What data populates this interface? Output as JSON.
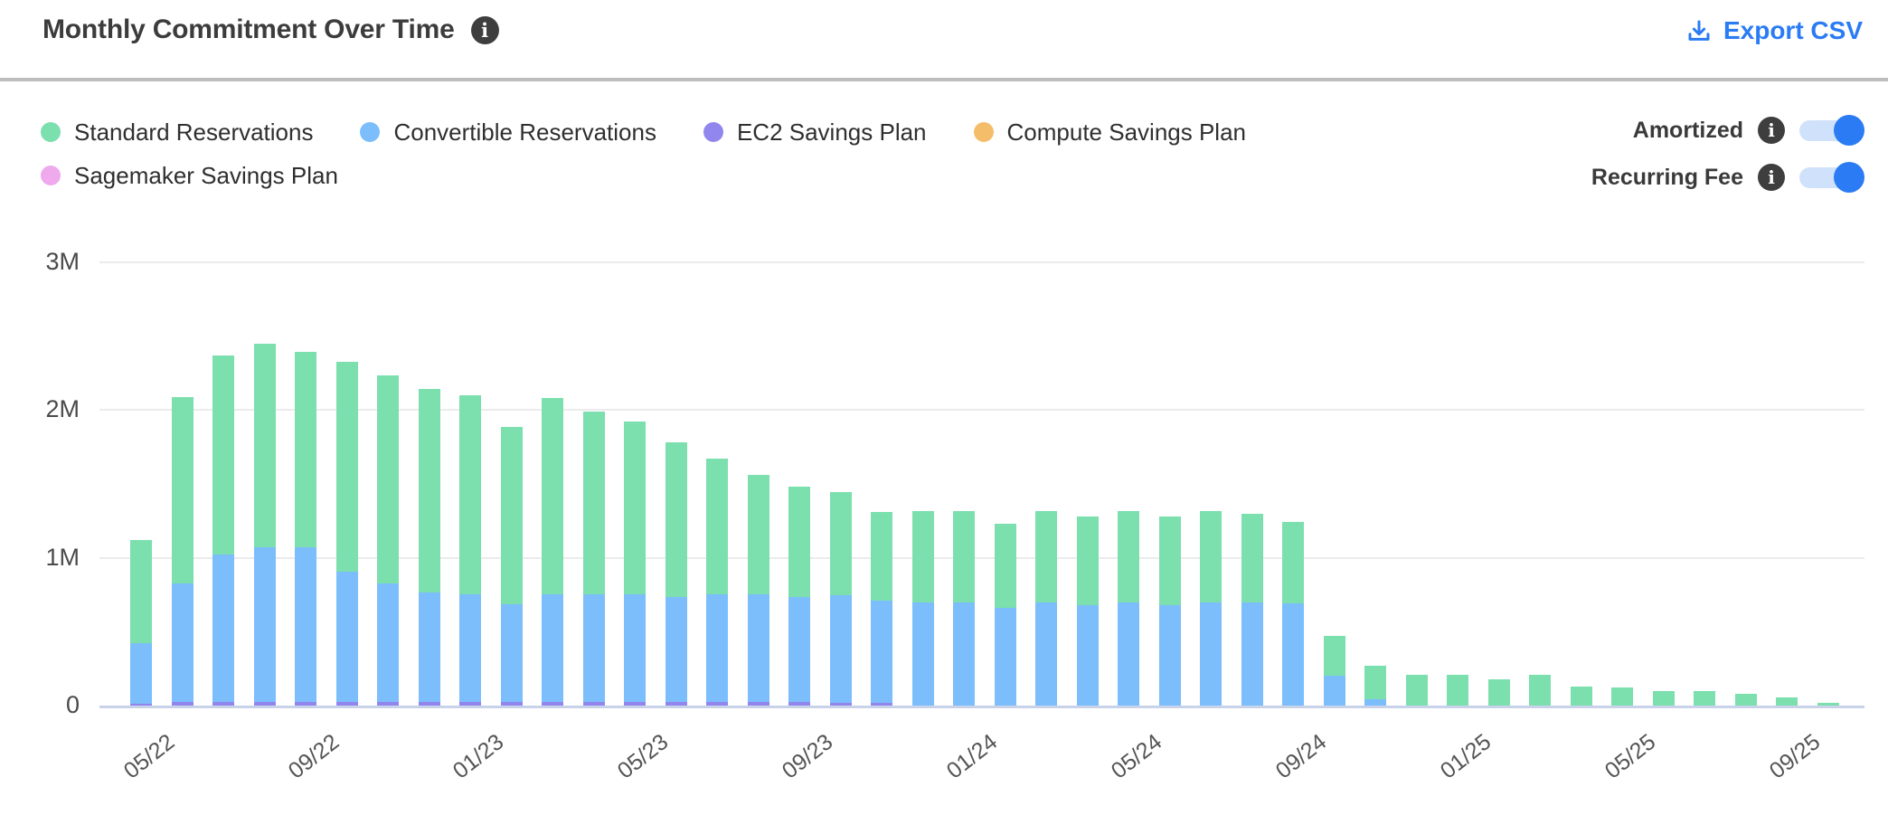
{
  "header": {
    "title": "Monthly Commitment Over Time",
    "title_info_icon": "i",
    "export_label": "Export CSV"
  },
  "legend": {
    "row1": [
      {
        "label": "Standard Reservations",
        "color": "#7cdfae"
      },
      {
        "label": "Convertible Reservations",
        "color": "#7cbefb"
      },
      {
        "label": "EC2 Savings Plan",
        "color": "#9186ee"
      },
      {
        "label": "Compute Savings Plan",
        "color": "#f4bd69"
      }
    ],
    "row2": [
      {
        "label": "Sagemaker Savings Plan",
        "color": "#efa9ed"
      }
    ]
  },
  "toggles": [
    {
      "label": "Amortized",
      "info_icon": "i",
      "state": "on"
    },
    {
      "label": "Recurring Fee",
      "info_icon": "i",
      "state": "on"
    }
  ],
  "colors": {
    "accent_blue": "#2a7bf4",
    "toggle_track": "#cfe1fb",
    "gridline": "#ebebee",
    "axis_line": "#c8d2e9"
  },
  "chart_data": {
    "type": "bar",
    "stacked": true,
    "title": "Monthly Commitment Over Time",
    "xlabel": "",
    "ylabel": "",
    "ylim_millions": [
      0,
      3
    ],
    "grid": true,
    "legend_position": "top-left",
    "yticks": [
      {
        "label": "3M",
        "value": 3
      },
      {
        "label": "2M",
        "value": 2
      },
      {
        "label": "1M",
        "value": 1
      },
      {
        "label": "0",
        "value": 0
      }
    ],
    "x": [
      "05/22",
      "06/22",
      "07/22",
      "08/22",
      "09/22",
      "10/22",
      "11/22",
      "12/22",
      "01/23",
      "02/23",
      "03/23",
      "04/23",
      "05/23",
      "06/23",
      "07/23",
      "08/23",
      "09/23",
      "10/23",
      "11/23",
      "12/23",
      "01/24",
      "02/24",
      "03/24",
      "04/24",
      "05/24",
      "06/24",
      "07/24",
      "08/24",
      "09/24",
      "10/24",
      "11/24",
      "12/24",
      "01/25",
      "02/25",
      "03/25",
      "04/25",
      "05/25",
      "06/25",
      "07/25",
      "08/25",
      "09/25",
      "10/25"
    ],
    "x_tick_indices": [
      0,
      4,
      8,
      12,
      16,
      20,
      24,
      28,
      32,
      36,
      40
    ],
    "units": "millions",
    "series": [
      {
        "name": "Standard Reservations",
        "color": "#7cdfae",
        "values": [
          0.7,
          1.26,
          1.35,
          1.38,
          1.32,
          1.42,
          1.41,
          1.38,
          1.35,
          1.2,
          1.33,
          1.24,
          1.17,
          1.05,
          0.92,
          0.81,
          0.75,
          0.7,
          0.6,
          0.62,
          0.62,
          0.57,
          0.62,
          0.6,
          0.62,
          0.6,
          0.62,
          0.6,
          0.55,
          0.27,
          0.225,
          0.21,
          0.21,
          0.18,
          0.21,
          0.13,
          0.12,
          0.1,
          0.1,
          0.08,
          0.055,
          0.02
        ]
      },
      {
        "name": "Convertible Reservations",
        "color": "#7cbefb",
        "values": [
          0.41,
          0.8,
          1.0,
          1.05,
          1.05,
          0.88,
          0.8,
          0.74,
          0.73,
          0.66,
          0.73,
          0.73,
          0.73,
          0.71,
          0.73,
          0.73,
          0.71,
          0.73,
          0.69,
          0.7,
          0.7,
          0.66,
          0.7,
          0.68,
          0.7,
          0.68,
          0.7,
          0.7,
          0.69,
          0.2,
          0.045,
          0,
          0,
          0,
          0,
          0,
          0,
          0,
          0,
          0,
          0,
          0
        ]
      },
      {
        "name": "EC2 Savings Plan",
        "color": "#9186ee",
        "values": [
          0.015,
          0.025,
          0.025,
          0.025,
          0.025,
          0.025,
          0.025,
          0.025,
          0.025,
          0.025,
          0.025,
          0.025,
          0.025,
          0.025,
          0.025,
          0.025,
          0.025,
          0.02,
          0.02,
          0,
          0,
          0,
          0,
          0,
          0,
          0,
          0,
          0,
          0,
          0,
          0,
          0,
          0,
          0,
          0,
          0,
          0,
          0,
          0,
          0,
          0,
          0
        ]
      },
      {
        "name": "Compute Savings Plan",
        "color": "#f4bd69",
        "values": [
          0,
          0,
          0,
          0,
          0,
          0,
          0,
          0,
          0,
          0,
          0,
          0,
          0,
          0,
          0,
          0,
          0,
          0,
          0,
          0,
          0,
          0,
          0,
          0,
          0,
          0,
          0,
          0,
          0,
          0,
          0,
          0,
          0,
          0,
          0,
          0,
          0,
          0,
          0,
          0,
          0,
          0
        ]
      },
      {
        "name": "Sagemaker Savings Plan",
        "color": "#efa9ed",
        "values": [
          0,
          0,
          0,
          0,
          0,
          0,
          0,
          0,
          0,
          0,
          0,
          0,
          0,
          0,
          0,
          0,
          0,
          0,
          0,
          0,
          0,
          0,
          0,
          0,
          0,
          0,
          0,
          0,
          0,
          0,
          0,
          0,
          0,
          0,
          0,
          0,
          0,
          0,
          0,
          0,
          0,
          0
        ]
      }
    ],
    "stack_order_bottom_to_top": [
      "Sagemaker Savings Plan",
      "Compute Savings Plan",
      "EC2 Savings Plan",
      "Convertible Reservations",
      "Standard Reservations"
    ]
  }
}
